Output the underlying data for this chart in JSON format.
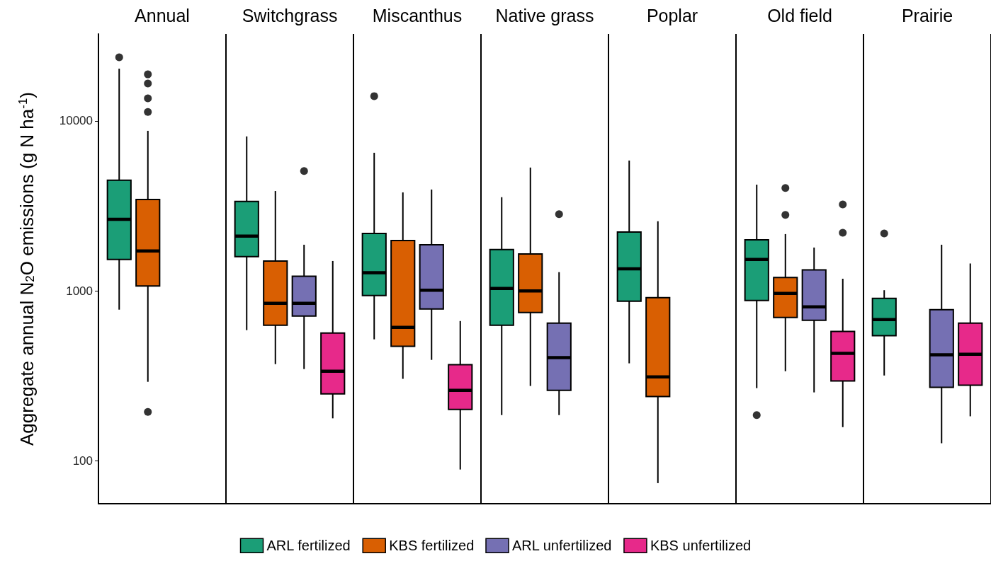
{
  "chart_data": {
    "type": "box",
    "categories": [
      "Annual",
      "Switchgrass",
      "Miscanthus",
      "Native grass",
      "Poplar",
      "Old field",
      "Prairie"
    ],
    "ylabel": "Aggregate annual N$_{2}$O emissions (g N ha$^{-1}$)",
    "log": true,
    "ylim": [
      56,
      32500
    ],
    "yticks": [
      100,
      1000,
      10000
    ],
    "grid": "x",
    "legend": "bottom",
    "series": [
      {
        "name": "ARL fertilized",
        "color": "#1b9e77",
        "boxes": [
          {
            "low": 776,
            "q1": 1530,
            "median": 2640,
            "q3": 4480,
            "high": 20300,
            "outliers": [
              23700
            ]
          },
          {
            "low": 588,
            "q1": 1590,
            "median": 2100,
            "q3": 3360,
            "high": 8110
          },
          {
            "low": 519,
            "q1": 940,
            "median": 1280,
            "q3": 2180,
            "high": 6500,
            "outliers": [
              14000
            ]
          },
          {
            "low": 186,
            "q1": 628,
            "median": 1035,
            "q3": 1750,
            "high": 3560
          },
          {
            "low": 375,
            "q1": 871,
            "median": 1350,
            "q3": 2220,
            "high": 5850
          },
          {
            "low": 268,
            "q1": 879,
            "median": 1530,
            "q3": 2000,
            "high": 4220,
            "outliers": [
              186
            ]
          },
          {
            "low": 318,
            "q1": 545,
            "median": 679,
            "q3": 904,
            "high": 1010,
            "outliers": [
              2180
            ]
          }
        ]
      },
      {
        "name": "KBS fertilized",
        "color": "#d95f02",
        "boxes": [
          {
            "low": 292,
            "q1": 1070,
            "median": 1720,
            "q3": 3450,
            "high": 8750,
            "outliers": [
              18800,
              16600,
              13600,
              11300,
              194
            ]
          },
          {
            "low": 371,
            "q1": 628,
            "median": 845,
            "q3": 1500,
            "high": 3870
          },
          {
            "low": 304,
            "q1": 472,
            "median": 611,
            "q3": 1980,
            "high": 3800
          },
          {
            "low": 276,
            "q1": 747,
            "median": 1000,
            "q3": 1650,
            "high": 5320
          },
          {
            "low": 74,
            "q1": 239,
            "median": 312,
            "q3": 913,
            "high": 2570
          },
          {
            "low": 337,
            "q1": 698,
            "median": 967,
            "q3": 1200,
            "high": 2160,
            "outliers": [
              4030,
              2800
            ]
          },
          null
        ]
      },
      {
        "name": "ARL unfertilized",
        "color": "#7570b3",
        "boxes": [
          null,
          {
            "low": 347,
            "q1": 712,
            "median": 845,
            "q3": 1220,
            "high": 1870,
            "outliers": [
              5070
            ]
          },
          {
            "low": 393,
            "q1": 783,
            "median": 1010,
            "q3": 1870,
            "high": 3950
          },
          {
            "low": 186,
            "q1": 260,
            "median": 405,
            "q3": 647,
            "high": 1290,
            "outliers": [
              2830
            ]
          },
          null,
          {
            "low": 253,
            "q1": 672,
            "median": 806,
            "q3": 1330,
            "high": 1800
          },
          {
            "low": 127,
            "q1": 271,
            "median": 421,
            "q3": 776,
            "high": 1870
          }
        ]
      },
      {
        "name": "KBS unfertilized",
        "color": "#e7298a",
        "boxes": [
          null,
          {
            "low": 178,
            "q1": 248,
            "median": 337,
            "q3": 566,
            "high": 1500
          },
          {
            "low": 89,
            "q1": 201,
            "median": 260,
            "q3": 368,
            "high": 665
          },
          null,
          null,
          {
            "low": 158,
            "q1": 295,
            "median": 429,
            "q3": 577,
            "high": 1180,
            "outliers": [
              3230,
              2200
            ]
          },
          {
            "low": 183,
            "q1": 279,
            "median": 424,
            "q3": 647,
            "high": 1450
          }
        ]
      }
    ]
  }
}
